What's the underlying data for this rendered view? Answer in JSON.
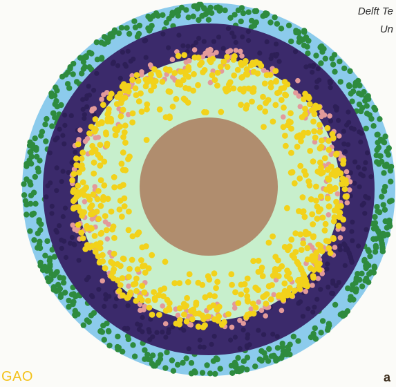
{
  "caption": {
    "line1": "Delft Te",
    "line2": "Un"
  },
  "logo_text": "GAO",
  "bottom_fragment": "a",
  "colors": {
    "outer_band": "#8ccbec",
    "green_particles": "#2e8b3e",
    "purple_mass": "#3b2a6b",
    "pink_particles": "#e39a9a",
    "pale_region": "#c7efcc",
    "yellow_particles": "#f2d21b",
    "core": "#b08d6e"
  },
  "layers": [
    {
      "name": "outer-band",
      "color": "#8ccbec"
    },
    {
      "name": "green-particles",
      "color": "#2e8b3e"
    },
    {
      "name": "purple-mass",
      "color": "#3b2a6b"
    },
    {
      "name": "pink-particles",
      "color": "#e39a9a"
    },
    {
      "name": "pale-green-region",
      "color": "#c7efcc"
    },
    {
      "name": "yellow-particles",
      "color": "#f2d21b"
    },
    {
      "name": "core-disk",
      "color": "#b08d6e"
    }
  ]
}
